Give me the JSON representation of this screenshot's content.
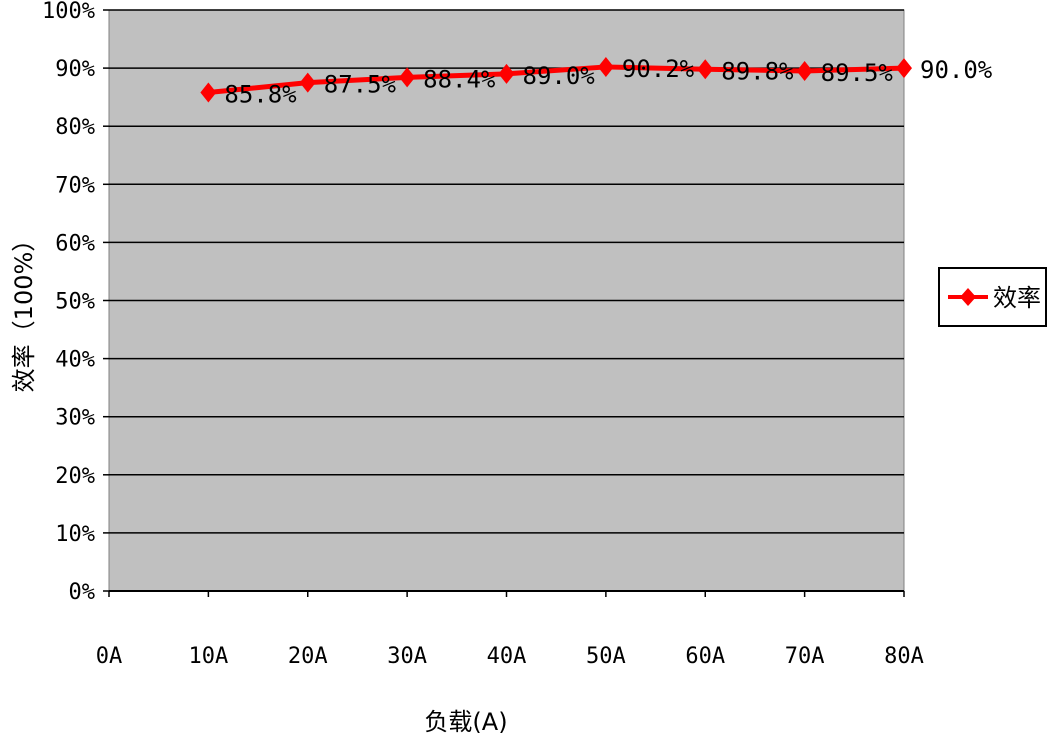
{
  "chart_data": {
    "type": "line",
    "categories": [
      "0A",
      "10A",
      "20A",
      "30A",
      "40A",
      "50A",
      "60A",
      "70A",
      "80A"
    ],
    "series": [
      {
        "name": "效率",
        "color": "#ff0000",
        "marker": "diamond",
        "x": [
          "10A",
          "20A",
          "30A",
          "40A",
          "50A",
          "60A",
          "70A",
          "80A"
        ],
        "values": [
          85.8,
          87.5,
          88.4,
          89.0,
          90.2,
          89.8,
          89.5,
          90.0
        ],
        "data_labels": [
          "85.8%",
          "87.5%",
          "88.4%",
          "89.0%",
          "90.2%",
          "89.8%",
          "89.5%",
          "90.0%"
        ]
      }
    ],
    "ylim": [
      0,
      100
    ],
    "yticks": [
      "0%",
      "10%",
      "20%",
      "30%",
      "40%",
      "50%",
      "60%",
      "70%",
      "80%",
      "90%",
      "100%"
    ],
    "xlabel": "负载(A)",
    "ylabel": "效率（100%）",
    "title": "",
    "grid": "horizontal",
    "plot_background": "#c0c0c0",
    "legend_position": "right"
  }
}
